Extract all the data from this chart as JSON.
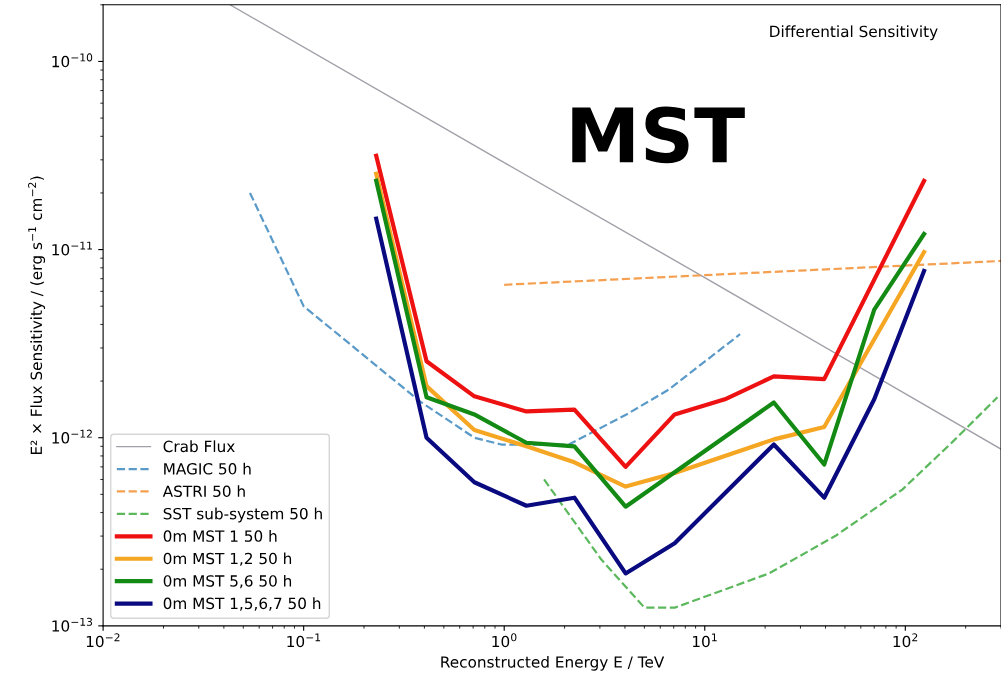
{
  "chart_data": {
    "type": "line",
    "xlabel": "Reconstructed Energy E / TeV",
    "ylabel": "E² × Flux Sensitivity / (erg s$^{−1}$ cm$^{−2}$)",
    "annotations": [
      "Differential Sensitivity",
      "MST"
    ],
    "log": "xy",
    "grid": false,
    "legend": "bottom left",
    "xlim": [
      0.01,
      300
    ],
    "ylim": [
      1e-13,
      2e-10
    ],
    "xticks": [
      {
        "value": 0.01,
        "label": "10$^{−2}$"
      },
      {
        "value": 0.1,
        "label": "10$^{−1}$"
      },
      {
        "value": 1,
        "label": "10$^{0}$"
      },
      {
        "value": 10,
        "label": "10$^{1}$"
      },
      {
        "value": 100,
        "label": "10$^{2}$"
      }
    ],
    "yticks": [
      {
        "value": 1e-13,
        "label": "10$^{−13}$"
      },
      {
        "value": 1e-12,
        "label": "10$^{−12}$"
      },
      {
        "value": 1e-11,
        "label": "10$^{−11}$"
      },
      {
        "value": 1e-10,
        "label": "10$^{−10}$"
      }
    ],
    "series": [
      {
        "name": "Crab Flux",
        "color": "#a0a0a8",
        "line_style": "solid",
        "x": [
          0.043,
          1,
          10,
          300
        ],
        "values": [
          2e-10,
          2.9e-11,
          7.1e-12,
          8.7e-13
        ]
      },
      {
        "name": "MAGIC 50 h",
        "color": "#5a9ac8",
        "line_style": "dashed",
        "x": [
          0.054,
          0.1,
          0.38,
          0.71,
          0.97,
          2.1,
          4.07,
          6.6,
          15
        ],
        "values": [
          2e-11,
          5e-12,
          1.56e-12,
          1e-12,
          9.2e-13,
          9.2e-13,
          1.33e-12,
          1.8e-12,
          3.55e-12
        ]
      },
      {
        "name": "ASTRI 50 h",
        "color": "#f5a050",
        "line_style": "dashed",
        "x": [
          1.0,
          300
        ],
        "values": [
          6.5e-12,
          8.7e-12
        ]
      },
      {
        "name": "SST sub-system 50 h",
        "color": "#5cb85c",
        "line_style": "dashed",
        "x": [
          1.58,
          3.05,
          5.0,
          7.1,
          20.9,
          44.7,
          96.6,
          172,
          288
        ],
        "values": [
          6e-13,
          2.25e-13,
          1.25e-13,
          1.25e-13,
          1.9e-13,
          3e-13,
          5.3e-13,
          9.5e-13,
          1.64e-12
        ]
      },
      {
        "name": "0m MST 1 50 h",
        "color": "#ee1111",
        "line_style": "solid",
        "x": [
          0.23,
          0.41,
          0.71,
          1.29,
          2.24,
          4.03,
          7.08,
          12.6,
          22.1,
          39.4,
          124
        ],
        "values": [
          3.15e-11,
          2.55e-12,
          1.66e-12,
          1.38e-12,
          1.41e-12,
          7e-13,
          1.33e-12,
          1.6e-12,
          2.12e-12,
          2.05e-12,
          2.32e-11
        ]
      },
      {
        "name": "0m MST 1,2 50 h",
        "color": "#f5a623",
        "line_style": "solid",
        "x": [
          0.23,
          0.41,
          0.71,
          1.29,
          2.24,
          4.03,
          7.08,
          22.1,
          39.4,
          124
        ],
        "values": [
          2.53e-11,
          1.88e-12,
          1.1e-12,
          9e-13,
          7.4e-13,
          5.5e-13,
          6.5e-13,
          9.8e-13,
          1.14e-12,
          9.7e-12
        ]
      },
      {
        "name": "0m MST 5,6 50 h",
        "color": "#138a13",
        "line_style": "solid",
        "x": [
          0.23,
          0.41,
          0.71,
          1.29,
          2.24,
          4.03,
          22.1,
          39.4,
          70,
          124
        ],
        "values": [
          2.32e-11,
          1.64e-12,
          1.33e-12,
          9.4e-13,
          9e-13,
          4.3e-13,
          1.54e-12,
          7.2e-13,
          4.8e-12,
          1.21e-11
        ]
      },
      {
        "name": "0m MST 1,5,6,7 50 h",
        "color": "#0a0a80",
        "line_style": "solid",
        "x": [
          0.23,
          0.41,
          0.71,
          1.29,
          2.24,
          4.03,
          7.08,
          22.1,
          39.4,
          70,
          124
        ],
        "values": [
          1.46e-11,
          1e-12,
          5.8e-13,
          4.35e-13,
          4.8e-13,
          1.9e-13,
          2.75e-13,
          9.2e-13,
          4.8e-13,
          1.6e-12,
          7.7e-12
        ]
      }
    ]
  }
}
